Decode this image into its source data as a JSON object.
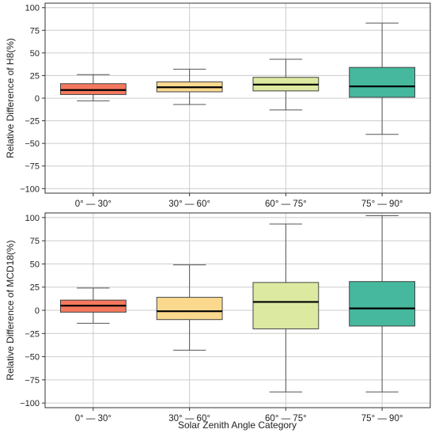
{
  "figure": {
    "xlabel": "Solar Zenith Angle Category"
  },
  "chart_data": [
    {
      "type": "boxplot",
      "ylabel": "Relative Difference of H8(%)",
      "ylim": [
        -105,
        105
      ],
      "yticks": [
        100,
        75,
        50,
        25,
        0,
        -25,
        -50,
        -75,
        -100
      ],
      "ytick_labels": [
        "100",
        "75",
        "50",
        "25",
        "0",
        "−25",
        "−50",
        "−75",
        "−100"
      ],
      "grid": true,
      "categories": [
        "0° — 30°",
        "30° — 60°",
        "60° — 75°",
        "75° — 90°"
      ],
      "colors": [
        "#f4785d",
        "#fad98e",
        "#dbeaa0",
        "#45b89d"
      ],
      "boxes": [
        {
          "whisker_low": -3,
          "q1": 4,
          "median": 9,
          "q3": 16,
          "whisker_high": 26
        },
        {
          "whisker_low": -7,
          "q1": 7,
          "median": 12,
          "q3": 18,
          "whisker_high": 32
        },
        {
          "whisker_low": -13,
          "q1": 8,
          "median": 15,
          "q3": 23,
          "whisker_high": 43
        },
        {
          "whisker_low": -40,
          "q1": 1,
          "median": 13,
          "q3": 34,
          "whisker_high": 83
        }
      ]
    },
    {
      "type": "boxplot",
      "ylabel": "Relative Difference of MCD18(%)",
      "ylim": [
        -105,
        105
      ],
      "yticks": [
        100,
        75,
        50,
        25,
        0,
        -25,
        -50,
        -75,
        -100
      ],
      "ytick_labels": [
        "100",
        "75",
        "50",
        "25",
        "0",
        "−25",
        "−50",
        "−75",
        "−100"
      ],
      "grid": true,
      "categories": [
        "0° — 30°",
        "30° — 60°",
        "60° — 75°",
        "75° — 90°"
      ],
      "colors": [
        "#f4785d",
        "#fad98e",
        "#dbeaa0",
        "#45b89d"
      ],
      "boxes": [
        {
          "whisker_low": -14,
          "q1": -2,
          "median": 5,
          "q3": 11,
          "whisker_high": 24
        },
        {
          "whisker_low": -43,
          "q1": -10,
          "median": -1,
          "q3": 14,
          "whisker_high": 49
        },
        {
          "whisker_low": -88,
          "q1": -20,
          "median": 9,
          "q3": 30,
          "whisker_high": 93
        },
        {
          "whisker_low": -88,
          "q1": -17,
          "median": 2,
          "q3": 31,
          "whisker_high": 102
        }
      ]
    }
  ]
}
